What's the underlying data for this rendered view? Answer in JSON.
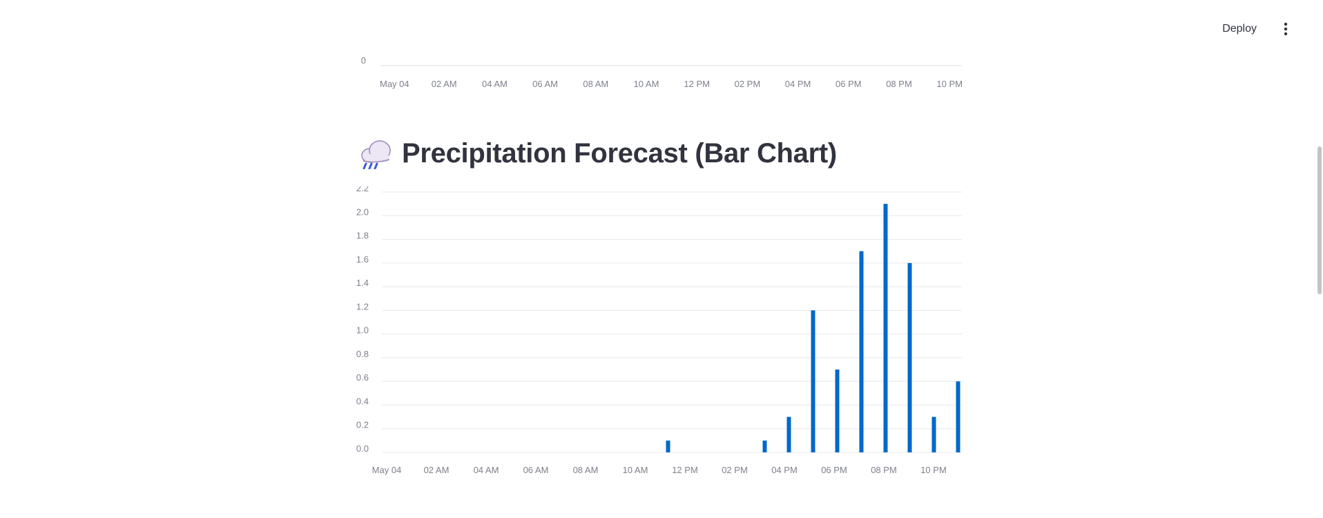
{
  "header": {
    "deploy_label": "Deploy",
    "menu_icon": "kebab-menu-icon"
  },
  "top_chart": {
    "y_tick": "0",
    "x_ticks": [
      "May 04",
      "02 AM",
      "04 AM",
      "06 AM",
      "08 AM",
      "10 AM",
      "12 PM",
      "02 PM",
      "04 PM",
      "06 PM",
      "08 PM",
      "10 PM"
    ]
  },
  "section": {
    "emoji": "🌧️",
    "title": "Precipitation Forecast (Bar Chart)"
  },
  "chart_data": {
    "type": "bar",
    "title": "",
    "xlabel": "",
    "ylabel": "",
    "ylim": [
      0,
      2.2
    ],
    "y_ticks": [
      "0.0",
      "0.2",
      "0.4",
      "0.6",
      "0.8",
      "1.0",
      "1.2",
      "1.4",
      "1.6",
      "1.8",
      "2.0",
      "2.2"
    ],
    "x_ticks": [
      "May 04",
      "02 AM",
      "04 AM",
      "06 AM",
      "08 AM",
      "10 AM",
      "12 PM",
      "02 PM",
      "04 PM",
      "06 PM",
      "08 PM",
      "10 PM"
    ],
    "grid": true,
    "color": "#0068c9",
    "x": [
      "00:00",
      "01:00",
      "02:00",
      "03:00",
      "04:00",
      "05:00",
      "06:00",
      "07:00",
      "08:00",
      "09:00",
      "10:00",
      "11:00",
      "12:00",
      "13:00",
      "14:00",
      "15:00",
      "16:00",
      "17:00",
      "18:00",
      "19:00",
      "20:00",
      "21:00",
      "22:00",
      "23:00"
    ],
    "values": [
      0,
      0,
      0,
      0,
      0,
      0,
      0,
      0,
      0,
      0,
      0,
      0.1,
      0,
      0,
      0,
      0.1,
      0.3,
      1.2,
      0.7,
      1.7,
      2.1,
      1.6,
      0.3,
      0.6
    ]
  }
}
